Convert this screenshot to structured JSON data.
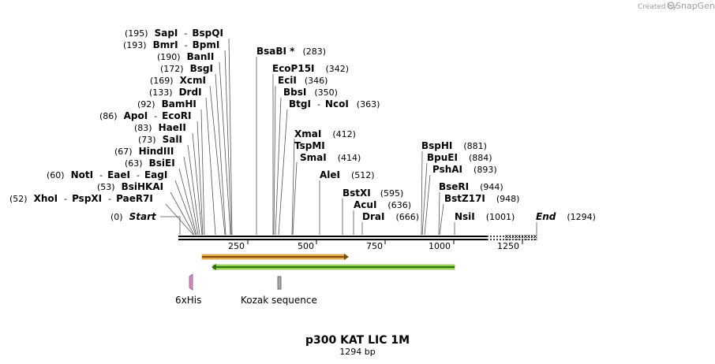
{
  "branding": {
    "created_by": "Created by",
    "app": "SnapGene"
  },
  "map": {
    "title": "p300 KAT LIC 1M",
    "length_label": "1294 bp",
    "length": 1294,
    "tick_labels": [
      "250",
      "500",
      "750",
      "1000",
      "1250"
    ]
  },
  "sites": {
    "s0": {
      "pos": "(195)",
      "name": "SapI",
      "sep": "-",
      "name2": "BspQI"
    },
    "s1": {
      "pos": "(193)",
      "name": "BmrI",
      "sep": "-",
      "name2": "BpmI"
    },
    "s2": {
      "pos": "(190)",
      "name": "BanII"
    },
    "s3": {
      "pos": "(172)",
      "name": "BsgI"
    },
    "s4": {
      "pos": "(169)",
      "name": "XcmI"
    },
    "s5": {
      "pos": "(133)",
      "name": "DrdI"
    },
    "s6": {
      "pos": "(92)",
      "name": "BamHI"
    },
    "s7": {
      "pos": "(86)",
      "name": "ApoI",
      "sep": "-",
      "name2": "EcoRI"
    },
    "s8": {
      "pos": "(83)",
      "name": "HaeII"
    },
    "s9": {
      "pos": "(73)",
      "name": "SalI"
    },
    "s10": {
      "pos": "(67)",
      "name": "HindIII"
    },
    "s11": {
      "pos": "(63)",
      "name": "BsiEI"
    },
    "s12": {
      "pos": "(60)",
      "name": "NotI",
      "sep": "-",
      "name2": "EaeI",
      "sep2": "-",
      "name3": "EagI"
    },
    "s13": {
      "pos": "(53)",
      "name": "BsiHKAI"
    },
    "s14": {
      "pos": "(52)",
      "name": "XhoI",
      "sep": "-",
      "name2": "PspXI",
      "sep2": "-",
      "name3": "PaeR7I"
    },
    "s15": {
      "pos": "(0)",
      "name": "Start"
    },
    "s16": {
      "pos": "(283)",
      "name": "BsaBI *"
    },
    "s17": {
      "pos": "(342)",
      "name": "EcoP15I"
    },
    "s18": {
      "pos": "(346)",
      "name": "EciI"
    },
    "s19": {
      "pos": "(350)",
      "name": "BbsI"
    },
    "s20": {
      "pos": "(363)",
      "name": "BtgI",
      "sep": "-",
      "name2": "NcoI"
    },
    "s21": {
      "pos": "(412)",
      "name": "XmaI"
    },
    "s22": {
      "name": "TspMI"
    },
    "s23": {
      "pos": "(414)",
      "name": "SmaI"
    },
    "s24": {
      "pos": "(512)",
      "name": "AleI"
    },
    "s25": {
      "pos": "(595)",
      "name": "BstXI"
    },
    "s26": {
      "pos": "(636)",
      "name": "AcuI"
    },
    "s27": {
      "pos": "(666)",
      "name": "DraI"
    },
    "s28": {
      "pos": "(881)",
      "name": "BspHI"
    },
    "s29": {
      "pos": "(884)",
      "name": "BpuEI"
    },
    "s30": {
      "pos": "(893)",
      "name": "PshAI"
    },
    "s31": {
      "pos": "(944)",
      "name": "BseRI"
    },
    "s32": {
      "pos": "(948)",
      "name": "BstZ17I"
    },
    "s33": {
      "pos": "(1001)",
      "name": "NsiI"
    },
    "s34": {
      "pos": "(1294)",
      "name": "End"
    }
  },
  "features": {
    "his": {
      "label": "6xHis",
      "color": "#d48bbd"
    },
    "kozak": {
      "label": "Kozak sequence",
      "color": "#a9a9a9"
    },
    "orange_arrow": {
      "color": "#f0a534"
    },
    "green_arrow": {
      "color": "#8fd63e"
    }
  }
}
